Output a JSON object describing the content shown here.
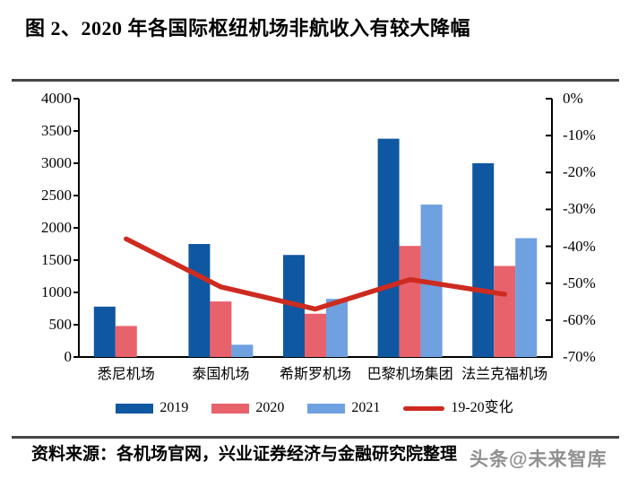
{
  "page": {
    "title": "图 2、2020 年各国际枢纽机场非航收入有较大降幅",
    "source_note": "资料来源：各机场官网，兴业证券经济与金融研究院整理",
    "watermark": "头条@未来智库"
  },
  "chart_data": {
    "type": "bar",
    "subtype": "grouped bars with overlay line on secondary axis",
    "title": "图 2、2020 年各国际枢纽机场非航收入有较大降幅",
    "categories": [
      "悉尼机场",
      "泰国机场",
      "希斯罗机场",
      "巴黎机场集团",
      "法兰克福机场"
    ],
    "series": [
      {
        "name": "2019",
        "kind": "bar",
        "axis": "left",
        "color": "#0F57A0",
        "values": [
          780,
          1750,
          1580,
          3380,
          3000
        ]
      },
      {
        "name": "2020",
        "kind": "bar",
        "axis": "left",
        "color": "#E8626B",
        "values": [
          480,
          860,
          670,
          1720,
          1410
        ]
      },
      {
        "name": "2021",
        "kind": "bar",
        "axis": "left",
        "color": "#6FA0E0",
        "values": [
          null,
          190,
          900,
          2360,
          1840
        ]
      },
      {
        "name": "19-20变化",
        "kind": "line",
        "axis": "right",
        "color": "#CE2B20",
        "values": [
          -38,
          -51,
          -57,
          -49,
          -53
        ]
      }
    ],
    "left_axis": {
      "min": 0,
      "max": 4000,
      "tick_step": 500,
      "ticks": [
        "4000",
        "3500",
        "3000",
        "2500",
        "2000",
        "1500",
        "1000",
        "500",
        "0"
      ]
    },
    "right_axis": {
      "min": -70,
      "max": 0,
      "tick_step": 10,
      "ticks": [
        "0%",
        "-10%",
        "-20%",
        "-30%",
        "-40%",
        "-50%",
        "-60%",
        "-70%"
      ]
    },
    "legend": {
      "position": "bottom",
      "entries": [
        "2019",
        "2020",
        "2021",
        "19-20变化"
      ]
    },
    "grid": false,
    "plot_background": "#ffffff",
    "axis_color": "#000000"
  },
  "colors": {
    "rule": "#464646",
    "watermark_text": "#7d7d7d"
  }
}
